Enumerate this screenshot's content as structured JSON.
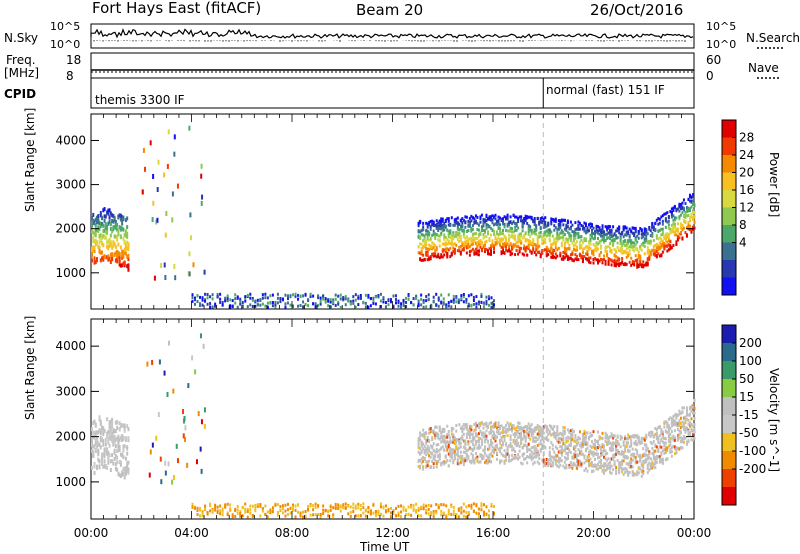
{
  "header": {
    "station": "Fort Hays East (fitACF)",
    "beam": "Beam 20",
    "date": "26/Oct/2016"
  },
  "panels_top": {
    "nsky_label": "N.Sky",
    "nsky_ticks": [
      "10^5",
      "10^0"
    ],
    "nsearch_label": "N.Search",
    "nsearch_ticks": [
      "10^5",
      "10^0"
    ],
    "freq_label_1": "Freq.",
    "freq_label_2": "[MHz]",
    "freq_ticks": [
      "18",
      "8"
    ],
    "nave_label": "Nave",
    "nave_ticks": [
      "60",
      "0"
    ],
    "cpid_label": "CPID",
    "cpid_modes": [
      {
        "text": "themis 3300 IF",
        "start_hour": 0
      },
      {
        "text": "normal (fast) 151 IF",
        "start_hour": 18
      }
    ]
  },
  "chart_data": [
    {
      "type": "heatmap",
      "name": "power",
      "ylabel": "Slant Range [km]",
      "ylim": [
        180,
        4600
      ],
      "yticks": [
        1000,
        2000,
        3000,
        4000
      ],
      "xlim": [
        0,
        24
      ],
      "colorbar": {
        "label": "Power [dB]",
        "ticks": [
          "28",
          "24",
          "20",
          "16",
          "12",
          "8",
          "4"
        ],
        "colors": [
          "#e00000",
          "#f03a00",
          "#f58a00",
          "#f8c020",
          "#d8d840",
          "#90c850",
          "#4ca868",
          "#3a7090",
          "#2838b0",
          "#1010f0"
        ]
      }
    },
    {
      "type": "heatmap",
      "name": "velocity",
      "ylabel": "Slant Range [km]",
      "ylim": [
        180,
        4600
      ],
      "yticks": [
        1000,
        2000,
        3000,
        4000
      ],
      "xlim": [
        0,
        24
      ],
      "xlabel": "Time UT",
      "xticks": [
        "00:00",
        "04:00",
        "08:00",
        "12:00",
        "16:00",
        "20:00",
        "00:00"
      ],
      "colorbar": {
        "label": "Velocity [m s^-1]",
        "ticks": [
          "200",
          "100",
          "50",
          "15",
          "-15",
          "-50",
          "-100",
          "-200"
        ],
        "colors": [
          "#1c1cb0",
          "#2a6a8a",
          "#3a9a6a",
          "#88cc44",
          "#c0c0c0",
          "#c8c8c8",
          "#f0c020",
          "#f08a00",
          "#f04000",
          "#e00000"
        ]
      }
    }
  ]
}
